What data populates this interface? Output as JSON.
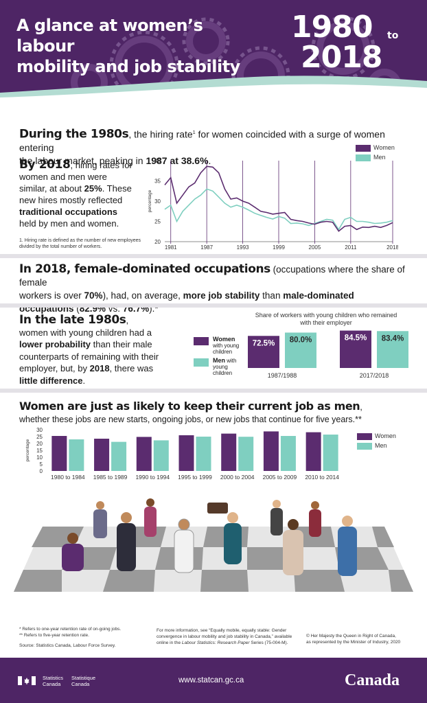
{
  "header": {
    "title_line1": "A glance at women’s labour",
    "title_line2": "mobility and job stability",
    "year_start": "1980",
    "year_to": "to",
    "year_end": "2018"
  },
  "section1": {
    "lead": "During the 1980s",
    "text_a": ", the hiring rate",
    "sup": "1",
    "text_b": " for women coincided with a surge of women entering",
    "text_c": "the labour market, peaking in ",
    "peak": "1987 at 38.6%",
    "period": "."
  },
  "section2": {
    "lead": "By 2018",
    "line1": ", hiring rates for",
    "line2": "women and men were",
    "line3a": "similar, at about ",
    "pct": "25%",
    "line3b": ". These",
    "line4": "new hires mostly reflected",
    "bold1": "traditional occupations",
    "line6": "held by men and women.",
    "footnote_l1": "1. Hiring rate is defined as the number of new employees",
    "footnote_l2": "divided by the total number of workers."
  },
  "chart1_colors": {
    "women": "#5b2c6f",
    "men": "#7fcfc0"
  },
  "chart1_ylabel": "percentage",
  "chart1_legend": {
    "women": "Women",
    "men": "Men"
  },
  "section3": {
    "lead": "In 2018, female-dominated occupations",
    "t1": " (occupations where the share of female",
    "t2": "workers is over ",
    "b2": "70%",
    "t3": "), had, on average, ",
    "b3": "more job stability",
    "t4": " than ",
    "b4": "male-dominated",
    "b5": "occupations",
    "t5": " (",
    "b6": "82.9%",
    "t6": " vs. ",
    "b7": "76.7%",
    "t7": ").*"
  },
  "section4": {
    "lead": "In the late 1980s",
    "l1": ",",
    "l2": "women with young children had a",
    "b1": "lower probability",
    "l3": " than their male",
    "l4": "counterparts of remaining with their",
    "l5a": "employer, but, by ",
    "b2": "2018",
    "l5b": ", there was",
    "b3": "little difference",
    "l6": ".",
    "chart_title_l1": "Share of workers with young children who remained",
    "chart_title_l2": "with their employer",
    "legend_women": "Women",
    "legend_women_sub1": "with young",
    "legend_women_sub2": "children",
    "legend_men": "Men",
    "legend_men_sub": " with",
    "legend_men_sub1": "young",
    "legend_men_sub2": "children"
  },
  "section5": {
    "lead": "Women are just as likely to keep their current job as men",
    "comma": ",",
    "sub": "whether these jobs are new starts, ongoing jobs, or new jobs that continue for five years.**",
    "ylabel": "percentage",
    "legend_women": "Women",
    "legend_men": "Men"
  },
  "footnotes": {
    "f1": "* Refers to one-year retention rate of on-going jobs.",
    "f2": "** Refers to five-year retention rate.",
    "source": "Source: Statistics Canada, Labour Force Survey.",
    "more_l1": "For more information, see “Equally mobile, equally stable: Gender",
    "more_l2": "convergence in labour mobility and job stability in Canada,” available",
    "more_l3a": "online in the ",
    "more_l3i": "Labour Statistics: Research Paper",
    "more_l3b": " Series (75-004-M).",
    "copy_l1": "© Her Majesty the Queen in Right of Canada,",
    "copy_l2": "as represented by the Minister of Industry, 2020"
  },
  "footer": {
    "sc_en1": "Statistics",
    "sc_en2": "Canada",
    "sc_fr1": "Statistique",
    "sc_fr2": "Canada",
    "url": "www.statcan.gc.ca",
    "wordmark": "Canada"
  },
  "chart_data": [
    {
      "type": "line",
      "ylabel": "percentage",
      "ylim": [
        20,
        40
      ],
      "yticks": [
        20,
        25,
        30,
        35,
        40
      ],
      "xtick_labels": [
        "1981",
        "1987",
        "1993",
        "1999",
        "2005",
        "2011",
        "2018"
      ],
      "x": [
        1980,
        1981,
        1982,
        1983,
        1984,
        1985,
        1986,
        1987,
        1988,
        1989,
        1990,
        1991,
        1992,
        1993,
        1994,
        1995,
        1996,
        1997,
        1998,
        1999,
        2000,
        2001,
        2002,
        2003,
        2004,
        2005,
        2006,
        2007,
        2008,
        2009,
        2010,
        2011,
        2012,
        2013,
        2014,
        2015,
        2016,
        2017,
        2018
      ],
      "series": [
        {
          "name": "Women",
          "color": "#5b2c6f",
          "values": [
            34.0,
            35.8,
            29.5,
            31.5,
            33.5,
            34.5,
            37.0,
            38.6,
            38.4,
            37.0,
            33.0,
            30.5,
            30.8,
            30.0,
            29.5,
            28.5,
            27.5,
            27.2,
            26.8,
            27.0,
            27.2,
            25.5,
            25.2,
            25.0,
            24.6,
            24.3,
            24.8,
            25.0,
            24.8,
            22.6,
            23.8,
            24.0,
            23.0,
            23.6,
            23.5,
            23.8,
            23.5,
            24.0,
            24.7
          ]
        },
        {
          "name": "Men",
          "color": "#7fcfc0",
          "values": [
            28.0,
            29.0,
            25.0,
            27.5,
            29.0,
            30.5,
            31.5,
            33.0,
            32.5,
            31.0,
            29.5,
            28.5,
            29.0,
            28.5,
            27.8,
            27.0,
            26.5,
            26.0,
            25.6,
            26.2,
            25.8,
            24.5,
            24.6,
            24.4,
            24.0,
            24.5,
            25.0,
            25.5,
            25.3,
            23.0,
            25.5,
            26.0,
            25.0,
            25.0,
            24.8,
            24.5,
            24.6,
            24.8,
            25.2
          ]
        }
      ],
      "legend": "top-right",
      "grid": false
    },
    {
      "type": "bar",
      "title": "Share of workers with young children who remained with their employer",
      "categories": [
        "1987/1988",
        "2017/2018"
      ],
      "series": [
        {
          "name": "Women with young children",
          "color": "#5b2c6f",
          "values": [
            72.5,
            84.5
          ],
          "labels": [
            "72.5%",
            "84.5%"
          ]
        },
        {
          "name": "Men with young children",
          "color": "#7fcfc0",
          "values": [
            80.0,
            83.4
          ],
          "labels": [
            "80.0%",
            "83.4%"
          ]
        }
      ]
    },
    {
      "type": "bar",
      "ylabel": "percentage",
      "ylim": [
        0,
        30
      ],
      "yticks": [
        0,
        5,
        10,
        15,
        20,
        25,
        30
      ],
      "categories": [
        "1980 to 1984",
        "1985 to 1989",
        "1990 to 1994",
        "1995 to 1999",
        "2000 to 2004",
        "2005 to 2009",
        "2010 to 2014"
      ],
      "series": [
        {
          "name": "Women",
          "color": "#5b2c6f",
          "values": [
            25.5,
            23.5,
            24.8,
            26.0,
            27.2,
            28.8,
            28.2
          ]
        },
        {
          "name": "Men",
          "color": "#7fcfc0",
          "values": [
            23.0,
            21.2,
            22.3,
            25.0,
            24.9,
            25.5,
            26.5
          ]
        }
      ],
      "legend": "right",
      "grid": false
    }
  ]
}
